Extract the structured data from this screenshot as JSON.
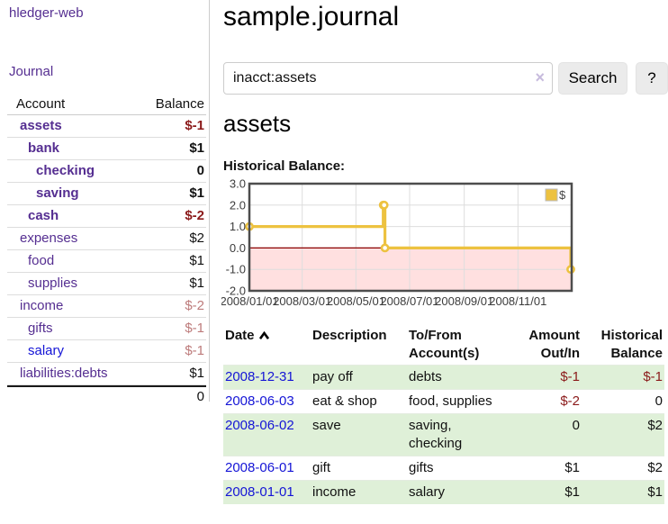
{
  "app": {
    "brand": "hledger-web",
    "nav_journal": "Journal"
  },
  "colors": {
    "purple_link": "#552e91",
    "blue_link": "#1414d6",
    "negative_strong": "#8b1a1a",
    "negative_muted": "#bd7b7b",
    "row_stripe_green": "#dff0d8",
    "series_gold": "#edc240"
  },
  "sidebar": {
    "accounts_header": {
      "account": "Account",
      "balance": "Balance"
    },
    "accounts": [
      {
        "name": "assets",
        "depth": 1,
        "balance": "$-1",
        "bold": true
      },
      {
        "name": "bank",
        "depth": 2,
        "balance": "$1",
        "bold": true
      },
      {
        "name": "checking",
        "depth": 3,
        "balance": "0",
        "bold": true
      },
      {
        "name": "saving",
        "depth": 3,
        "balance": "$1",
        "bold": true
      },
      {
        "name": "cash",
        "depth": 2,
        "balance": "$-2",
        "bold": true
      },
      {
        "name": "expenses",
        "depth": 1,
        "balance": "$2",
        "bold": false
      },
      {
        "name": "food",
        "depth": 2,
        "balance": "$1",
        "bold": false
      },
      {
        "name": "supplies",
        "depth": 2,
        "balance": "$1",
        "bold": false
      },
      {
        "name": "income",
        "depth": 1,
        "balance": "$-2",
        "bold": false
      },
      {
        "name": "gifts",
        "depth": 2,
        "balance": "$-1",
        "bold": false
      },
      {
        "name": "salary",
        "depth": 2,
        "balance": "$-1",
        "bold": false,
        "link_style": "blue"
      },
      {
        "name": "liabilities:debts",
        "depth": 1,
        "balance": "$1",
        "bold": false
      }
    ],
    "total": "0"
  },
  "header": {
    "title": "sample.journal"
  },
  "search": {
    "value": "inacct:assets",
    "clear_icon": "×",
    "button": "Search",
    "help_button": "?"
  },
  "account_page": {
    "heading": "assets",
    "chart_label": "Historical Balance:"
  },
  "chart_data": {
    "type": "line",
    "step": true,
    "x_range": [
      "2008-01-01",
      "2009-01-01"
    ],
    "ylim": [
      -2,
      3
    ],
    "y_ticks": [
      "3.0",
      "2.0",
      "1.0",
      "0.0",
      "-1.0",
      "-2.0"
    ],
    "y_tick_values": [
      3,
      2,
      1,
      0,
      -1,
      -2
    ],
    "x_ticks": [
      {
        "date": "2008-01-01",
        "label": "2008/01/01"
      },
      {
        "date": "2008-03-01",
        "label": "2008/03/01"
      },
      {
        "date": "2008-05-01",
        "label": "2008/05/01"
      },
      {
        "date": "2008-07-01",
        "label": "2008/07/01"
      },
      {
        "date": "2008-09-01",
        "label": "2008/09/01"
      },
      {
        "date": "2008-11-01",
        "label": "2008/11/01"
      }
    ],
    "series": [
      {
        "name": "$",
        "color": "#edc240",
        "points": [
          [
            "2008-01-01",
            1
          ],
          [
            "2008-06-01",
            2
          ],
          [
            "2008-06-02",
            2
          ],
          [
            "2008-06-03",
            0
          ],
          [
            "2008-12-31",
            -1
          ]
        ]
      }
    ],
    "legend": {
      "label": "$",
      "position": "top-right"
    },
    "grid": true,
    "negative_region": {
      "from": 0,
      "to": -2,
      "fill": "rgba(255,0,0,0.12)",
      "zero_line_color": "#8b0000"
    }
  },
  "register": {
    "columns": {
      "date": "Date",
      "description": "Description",
      "tofrom_line1": "To/From",
      "tofrom_line2": "Account(s)",
      "amount_line1": "Amount",
      "amount_line2": "Out/In",
      "balance_line1": "Historical",
      "balance_line2": "Balance"
    },
    "rows": [
      {
        "date": "2008-12-31",
        "description": "pay off",
        "accounts": "debts",
        "amount": "$-1",
        "balance": "$-1"
      },
      {
        "date": "2008-06-03",
        "description": "eat & shop",
        "accounts": "food, supplies",
        "amount": "$-2",
        "balance": "0"
      },
      {
        "date": "2008-06-02",
        "description": "save",
        "accounts": "saving, checking",
        "amount": "0",
        "balance": "$2"
      },
      {
        "date": "2008-06-01",
        "description": "gift",
        "accounts": "gifts",
        "amount": "$1",
        "balance": "$2"
      },
      {
        "date": "2008-01-01",
        "description": "income",
        "accounts": "salary",
        "amount": "$1",
        "balance": "$1"
      }
    ]
  }
}
